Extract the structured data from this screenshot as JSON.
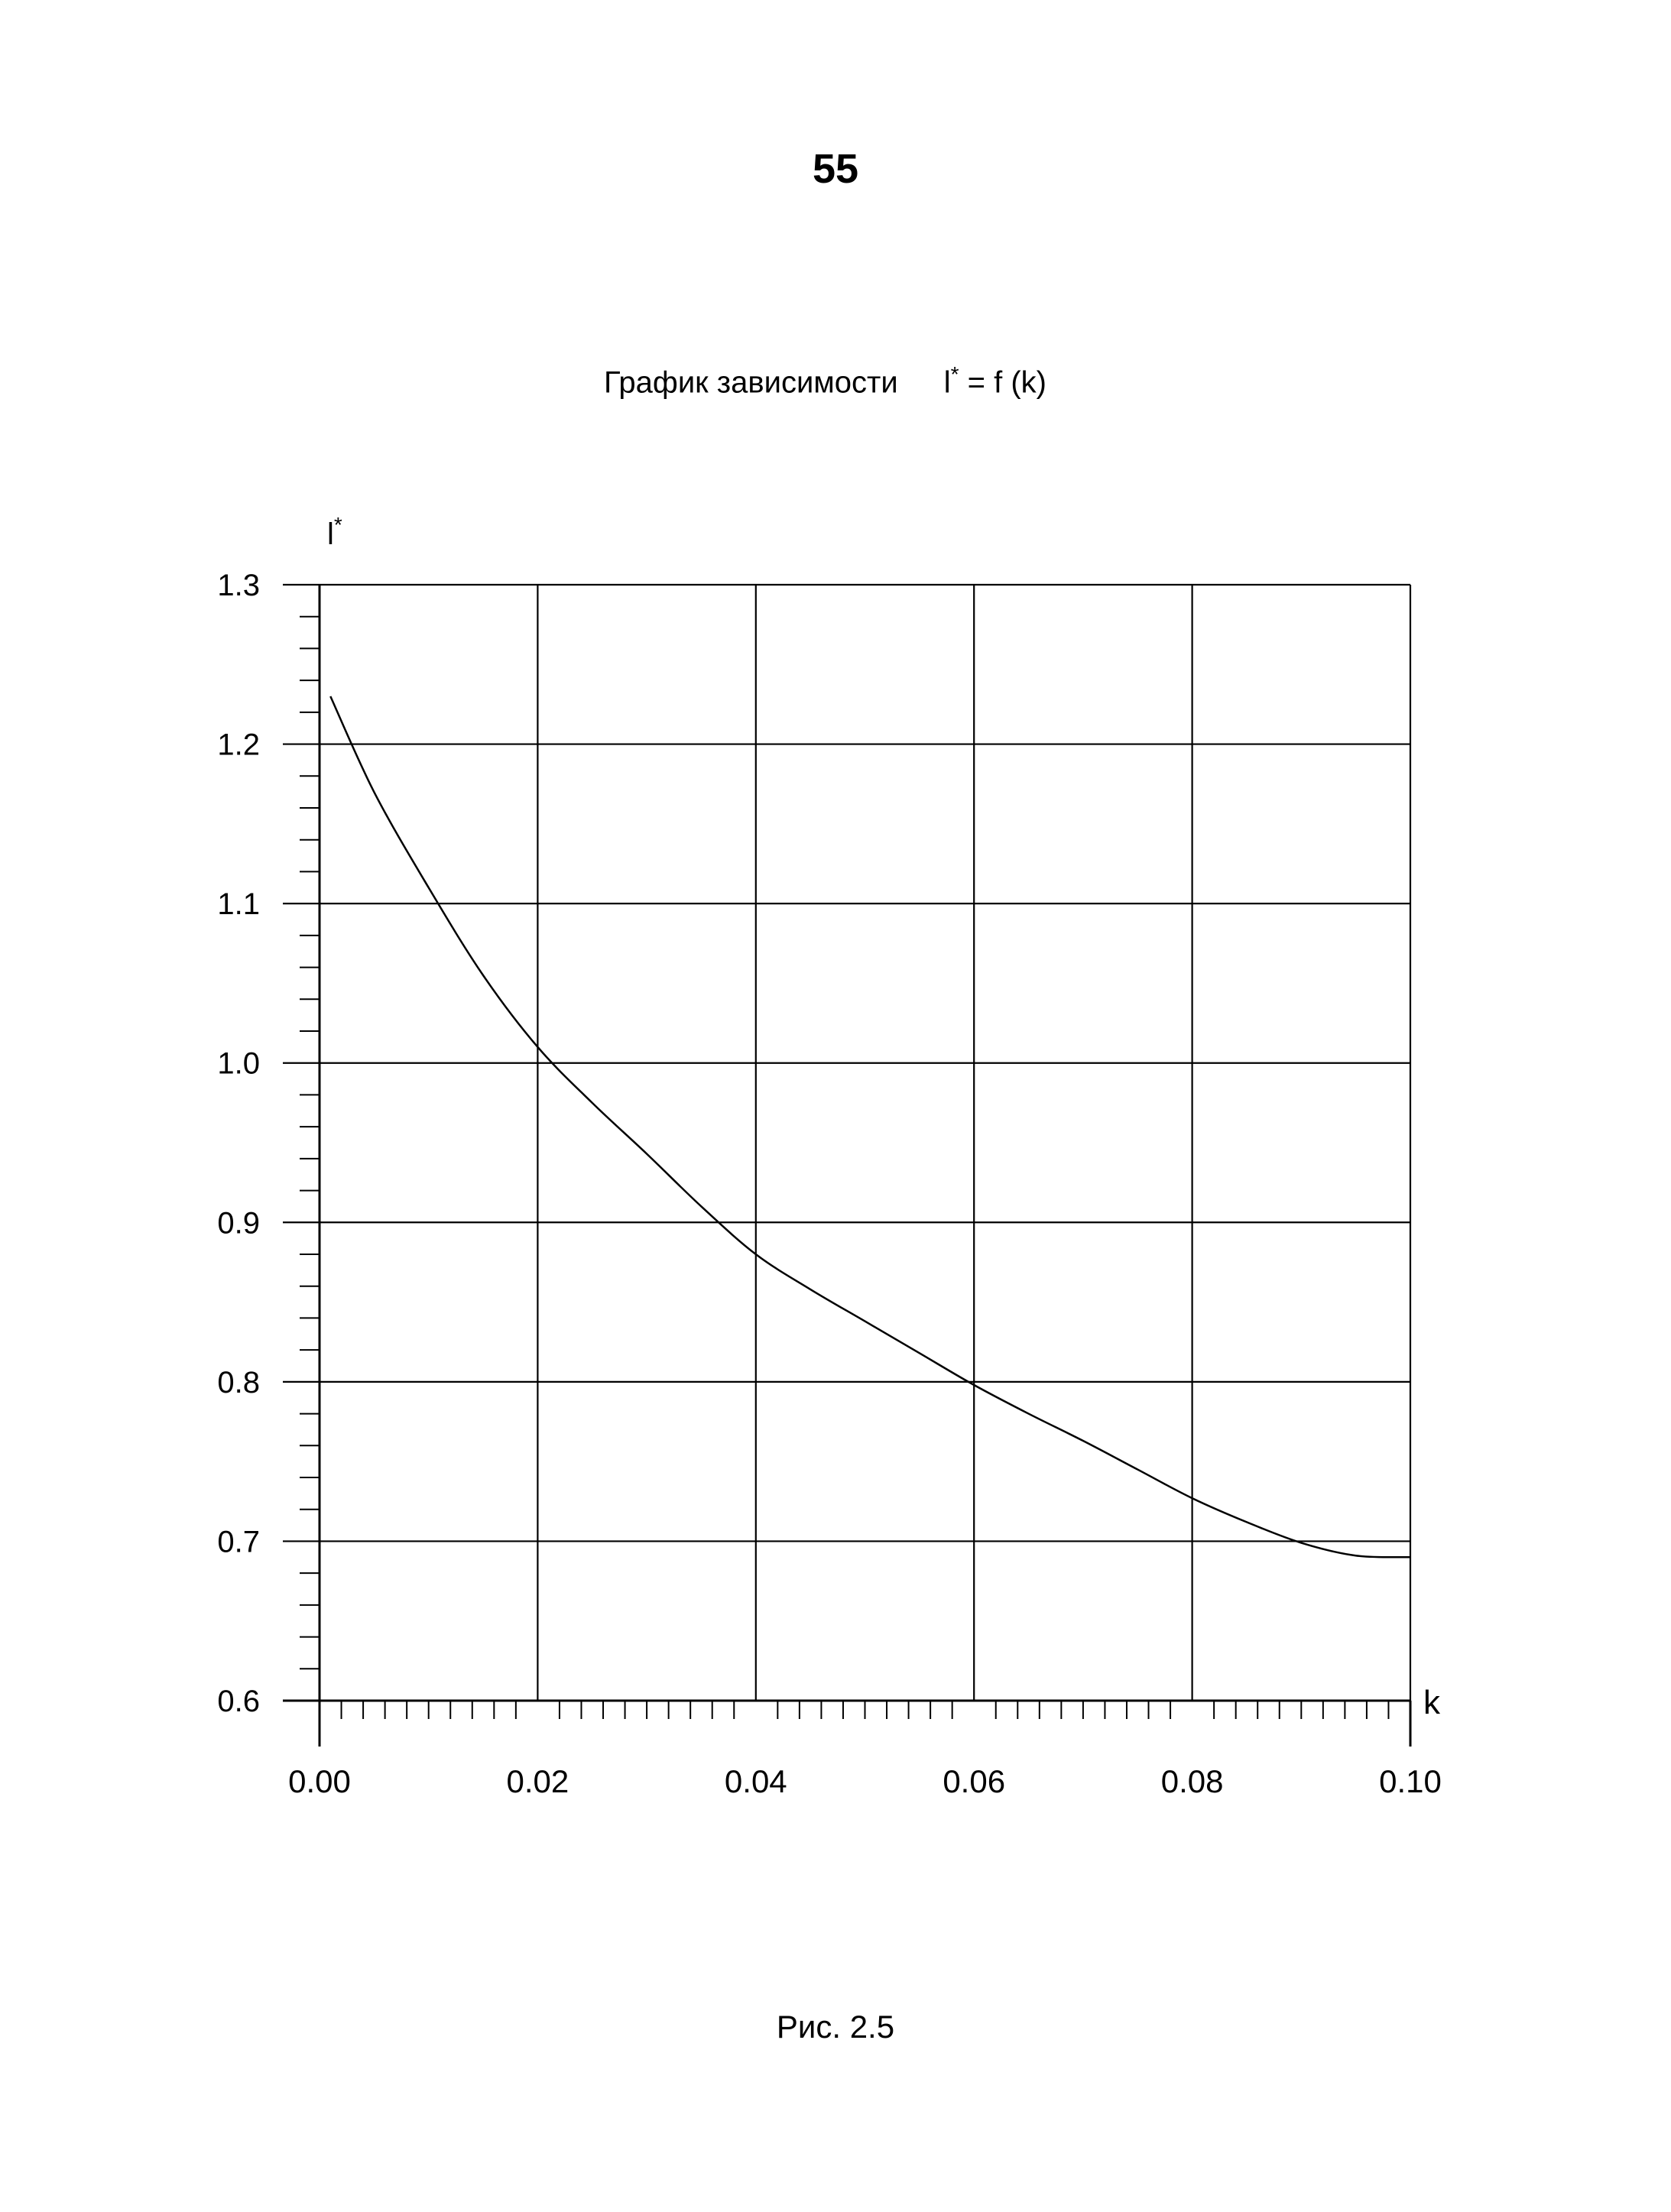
{
  "page": {
    "number": "55",
    "caption": "Рис. 2.5"
  },
  "chart_data": {
    "type": "line",
    "title_text": "График зависимости",
    "title_formula_base": "l",
    "title_formula_sup": "*",
    "title_formula_rest": " = f (k)",
    "xlabel": "k",
    "ylabel_base": "l",
    "ylabel_sup": "*",
    "xlim": [
      0.0,
      0.1
    ],
    "ylim": [
      0.6,
      1.3
    ],
    "x_ticks": [
      "0.00",
      "0.02",
      "0.04",
      "0.06",
      "0.08",
      "0.10"
    ],
    "x_tick_values": [
      0.0,
      0.02,
      0.04,
      0.06,
      0.08,
      0.1
    ],
    "y_ticks": [
      "1.3",
      "1.2",
      "1.1",
      "1.0",
      "0.9",
      "0.8",
      "0.7",
      "0.6"
    ],
    "y_tick_values": [
      1.3,
      1.2,
      1.1,
      1.0,
      0.9,
      0.8,
      0.7,
      0.6
    ],
    "grid": true,
    "series": [
      {
        "x": [
          0.001,
          0.005,
          0.01,
          0.015,
          0.02,
          0.025,
          0.03,
          0.035,
          0.04,
          0.045,
          0.05,
          0.055,
          0.06,
          0.065,
          0.07,
          0.075,
          0.08,
          0.085,
          0.09,
          0.095,
          0.1
        ],
        "y": [
          1.23,
          1.17,
          1.11,
          1.055,
          1.01,
          0.975,
          0.943,
          0.91,
          0.88,
          0.858,
          0.838,
          0.818,
          0.798,
          0.78,
          0.763,
          0.745,
          0.727,
          0.712,
          0.699,
          0.691,
          0.69
        ]
      }
    ]
  }
}
